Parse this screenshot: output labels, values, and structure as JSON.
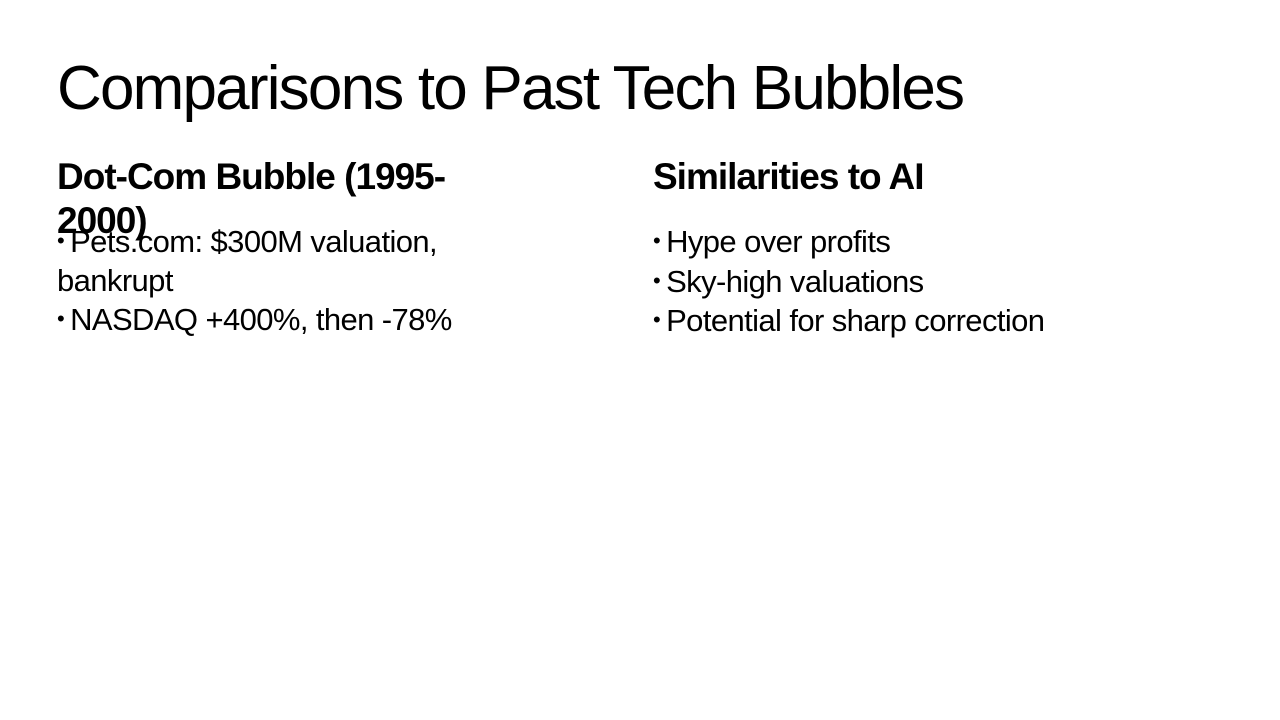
{
  "slide": {
    "title": "Comparisons to Past Tech Bubbles",
    "columns": [
      {
        "heading": "Dot-Com Bubble (1995-2000)",
        "bullets": [
          "Pets.com: $300M valuation, bankrupt",
          "NASDAQ +400%, then -78%"
        ]
      },
      {
        "heading": "Similarities to AI",
        "bullets": [
          "Hype over profits",
          "Sky-high valuations",
          "Potential for sharp correction"
        ]
      }
    ],
    "bullet_glyph": "•",
    "colors": {
      "background": "#ffffff",
      "text": "#000000"
    }
  }
}
